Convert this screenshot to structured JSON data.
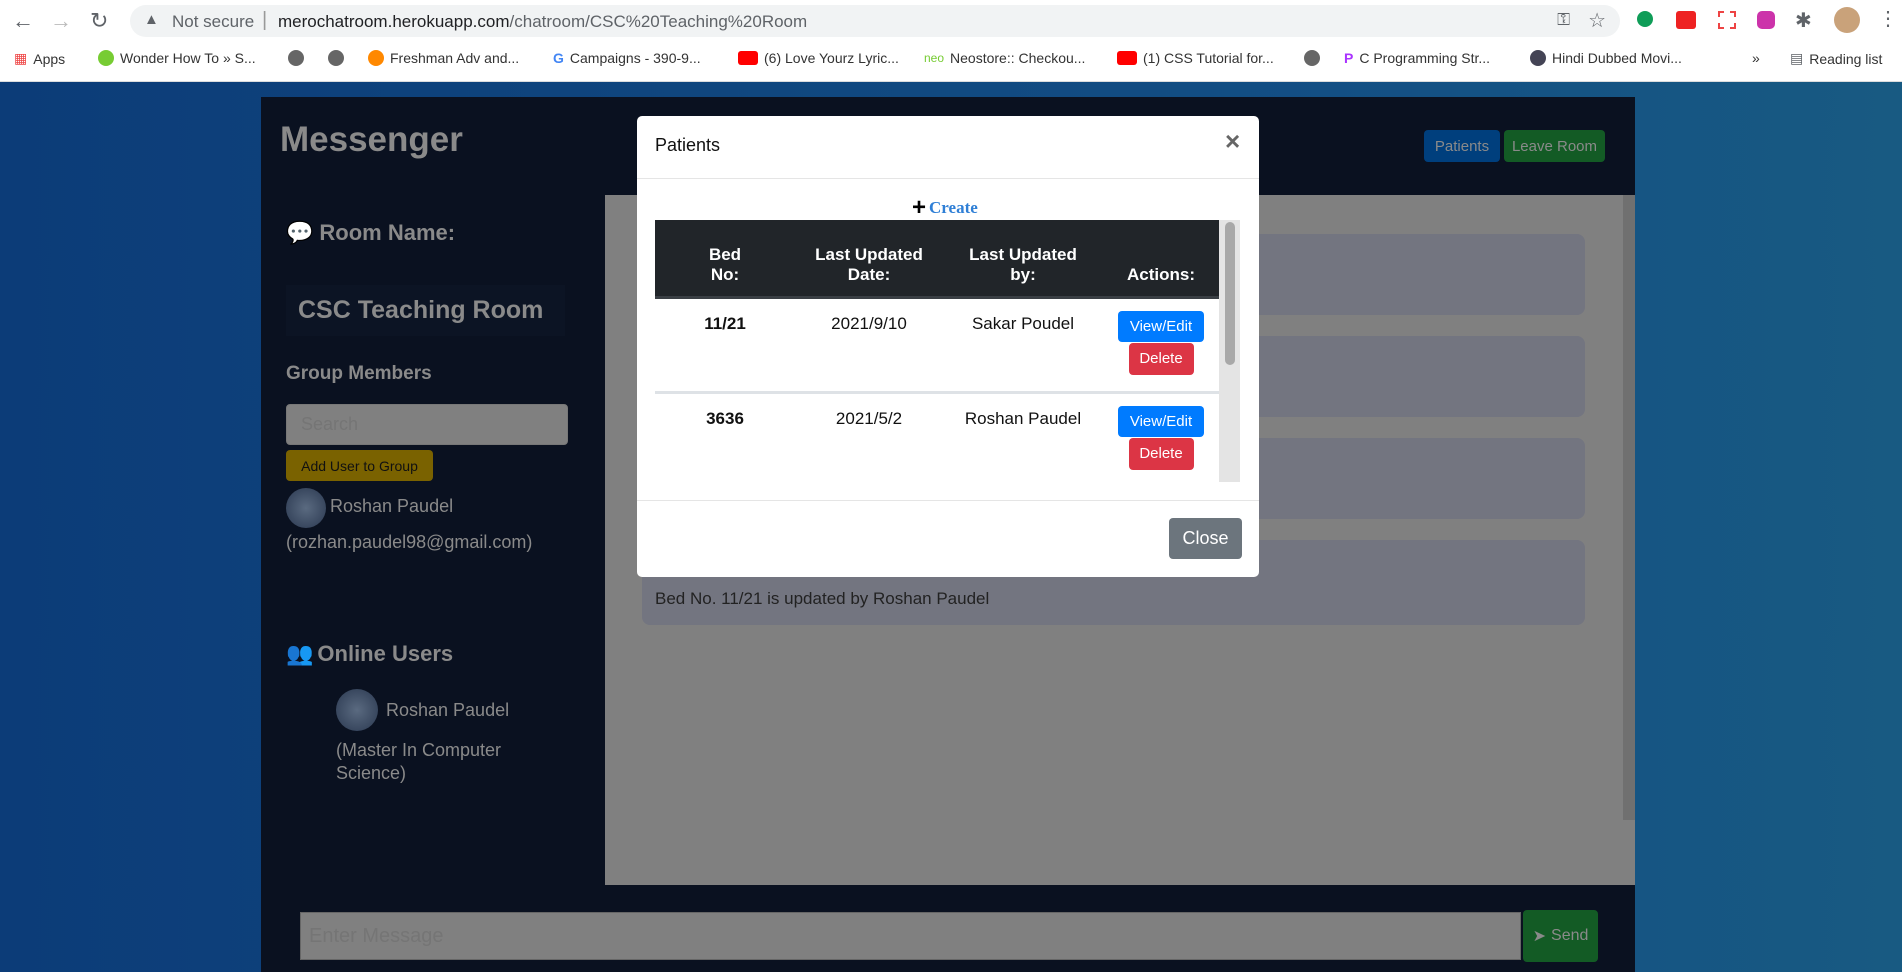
{
  "browser": {
    "security": "Not secure",
    "url_host": "merochatroom.herokuapp.com",
    "url_path": "/chatroom/CSC%20Teaching%20Room",
    "bookmarks": [
      "Apps",
      "Wonder How To » S...",
      "",
      "",
      "Freshman Adv and...",
      "Campaigns - 390-9...",
      "(6) Love Yourz Lyric...",
      "Neostore:: Checkou...",
      "(1) CSS Tutorial for...",
      "",
      "C Programming Str...",
      "Hindi Dubbed Movi..."
    ],
    "more": "»",
    "reading_list": "Reading list"
  },
  "app": {
    "title": "Messenger",
    "patients_button": "Patients",
    "leave_button": "Leave Room",
    "room_label": "Room Name:",
    "room_name": "CSC Teaching Room",
    "group_members_label": "Group Members",
    "search_placeholder": "Search",
    "add_user_button": "Add User to Group",
    "members": [
      {
        "name": "Roshan Paudel",
        "email": "(rozhan.paudel98@gmail.com)"
      }
    ],
    "online_label": "Online Users",
    "online": [
      {
        "name": "Roshan Paudel",
        "role_line1": "(Master In Computer",
        "role_line2": "Science)"
      }
    ],
    "messages": [
      "",
      "",
      "",
      "Bed No. 11/21 is updated by Roshan Paudel"
    ],
    "message_placeholder": "Enter Message",
    "send_button": "Send"
  },
  "modal": {
    "title": "Patients",
    "close_x": "×",
    "create": "Create",
    "columns": [
      [
        "Bed",
        "No:"
      ],
      [
        "Last Updated",
        "Date:"
      ],
      [
        "Last Updated",
        "by:"
      ],
      [
        "",
        "Actions:"
      ]
    ],
    "rows": [
      {
        "bed": "11/21",
        "date": "2021/9/10",
        "by": "Sakar Poudel"
      },
      {
        "bed": "3636",
        "date": "2021/5/2",
        "by": "Roshan Paudel"
      }
    ],
    "view_edit": "View/Edit",
    "delete": "Delete",
    "close_button": "Close",
    "scroll_fraction": 0.0
  },
  "colors": {
    "primary": "#007bff",
    "danger": "#dc3545",
    "secondary": "#6c757d",
    "header_dark": "#212529"
  }
}
